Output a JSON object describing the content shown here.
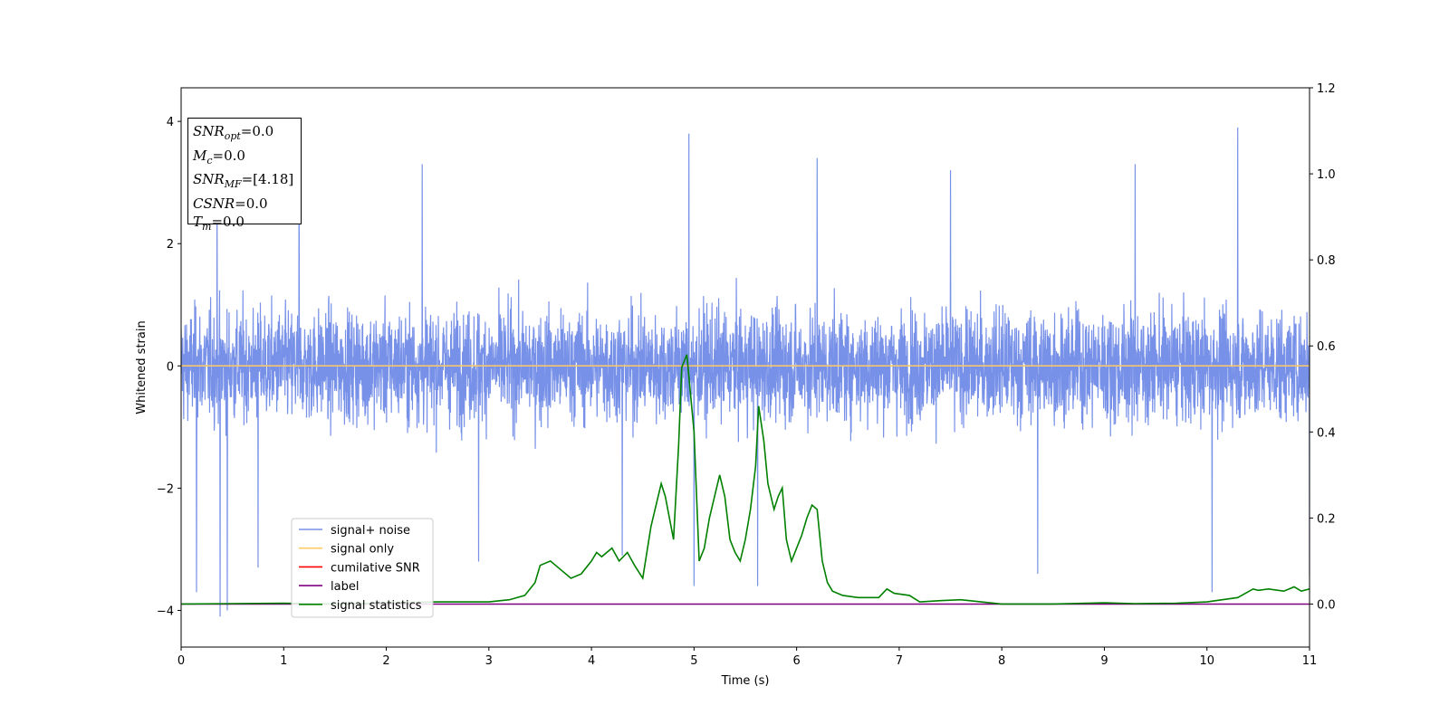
{
  "chart_data": {
    "type": "line",
    "xlabel": "Time (s)",
    "ylabel": "Whitened strain",
    "xlim": [
      0,
      11
    ],
    "ylim": [
      -4.6,
      4.55
    ],
    "y2lim": [
      -0.1,
      1.2
    ],
    "x_ticks": [
      "0",
      "1",
      "2",
      "3",
      "4",
      "5",
      "6",
      "7",
      "8",
      "9",
      "10",
      "11"
    ],
    "y_ticks": [
      "4",
      "2",
      "0",
      "−2",
      "−4"
    ],
    "y2_ticks": [
      "1.2",
      "1.0",
      "0.8",
      "0.6",
      "0.4",
      "0.2",
      "0.0"
    ],
    "legend_position": "lower-left",
    "series": [
      {
        "name": "signal+ noise",
        "axis": "left",
        "color": "#7891e8",
        "description_kind": "noise",
        "upper_peaks": [
          [
            0.35,
            2.9
          ],
          [
            1.15,
            3.5
          ],
          [
            2.35,
            3.3
          ],
          [
            4.95,
            3.8
          ],
          [
            6.2,
            3.4
          ],
          [
            7.5,
            3.2
          ],
          [
            9.3,
            3.3
          ],
          [
            10.3,
            3.9
          ]
        ],
        "lower_peaks": [
          [
            0.38,
            -4.1
          ],
          [
            0.45,
            -4.0
          ],
          [
            0.15,
            -3.7
          ],
          [
            0.75,
            -3.3
          ],
          [
            2.9,
            -3.2
          ],
          [
            4.3,
            -3.1
          ],
          [
            5.0,
            -3.6
          ],
          [
            5.62,
            -3.6
          ],
          [
            8.35,
            -3.4
          ],
          [
            10.05,
            -3.7
          ],
          [
            11.0,
            -3.45
          ]
        ]
      },
      {
        "name": "signal only",
        "axis": "left",
        "color": "#ffc966",
        "x": [
          0,
          11
        ],
        "y": [
          0,
          0
        ]
      },
      {
        "name": "cumilative SNR",
        "axis": "left",
        "color": "#ff0000",
        "x": [],
        "y": []
      },
      {
        "name": "label",
        "axis": "right",
        "color": "#800080",
        "x": [
          0,
          11
        ],
        "y": [
          0,
          0
        ]
      },
      {
        "name": "signal statistics",
        "axis": "right",
        "color": "#008000",
        "x": [
          0,
          1.0,
          1.5,
          2.5,
          3.0,
          3.2,
          3.35,
          3.45,
          3.5,
          3.6,
          3.7,
          3.8,
          3.9,
          4.0,
          4.05,
          4.1,
          4.2,
          4.27,
          4.35,
          4.42,
          4.5,
          4.58,
          4.65,
          4.68,
          4.72,
          4.8,
          4.85,
          4.88,
          4.93,
          5.0,
          5.05,
          5.1,
          5.15,
          5.2,
          5.25,
          5.3,
          5.35,
          5.4,
          5.45,
          5.5,
          5.55,
          5.6,
          5.63,
          5.68,
          5.72,
          5.78,
          5.82,
          5.86,
          5.9,
          5.95,
          6.0,
          6.05,
          6.1,
          6.15,
          6.2,
          6.25,
          6.3,
          6.35,
          6.45,
          6.6,
          6.8,
          6.88,
          6.95,
          7.1,
          7.2,
          7.4,
          7.6,
          7.8,
          8.0,
          8.5,
          9.0,
          9.3,
          9.7,
          10.0,
          10.3,
          10.45,
          10.5,
          10.6,
          10.75,
          10.85,
          10.92,
          11.0
        ],
        "y": [
          0.0,
          0.002,
          0.0,
          0.005,
          0.005,
          0.01,
          0.02,
          0.05,
          0.09,
          0.1,
          0.08,
          0.06,
          0.07,
          0.1,
          0.12,
          0.11,
          0.13,
          0.1,
          0.12,
          0.09,
          0.06,
          0.18,
          0.25,
          0.28,
          0.25,
          0.15,
          0.37,
          0.55,
          0.58,
          0.4,
          0.1,
          0.13,
          0.2,
          0.25,
          0.3,
          0.25,
          0.15,
          0.12,
          0.1,
          0.15,
          0.22,
          0.32,
          0.46,
          0.38,
          0.28,
          0.22,
          0.25,
          0.27,
          0.15,
          0.1,
          0.13,
          0.16,
          0.2,
          0.23,
          0.22,
          0.1,
          0.05,
          0.03,
          0.02,
          0.015,
          0.015,
          0.035,
          0.025,
          0.02,
          0.005,
          0.008,
          0.01,
          0.005,
          0.0,
          0.0,
          0.003,
          0.001,
          0.002,
          0.005,
          0.015,
          0.035,
          0.032,
          0.035,
          0.03,
          0.04,
          0.03,
          0.035
        ]
      }
    ]
  },
  "info_box": {
    "snr_opt": {
      "sym": "SNR",
      "sub": "opt",
      "value": "=0.0"
    },
    "mc": {
      "sym": "M",
      "sub": "c",
      "value": "=0.0"
    },
    "snr_mf": {
      "sym": "SNR",
      "sub": "MF",
      "value": "=[4.18]"
    },
    "csnr": {
      "sym": "CSNR",
      "value": "=0.0"
    },
    "tm": {
      "sym": "T",
      "sub": "m",
      "value": "=0.0"
    }
  }
}
